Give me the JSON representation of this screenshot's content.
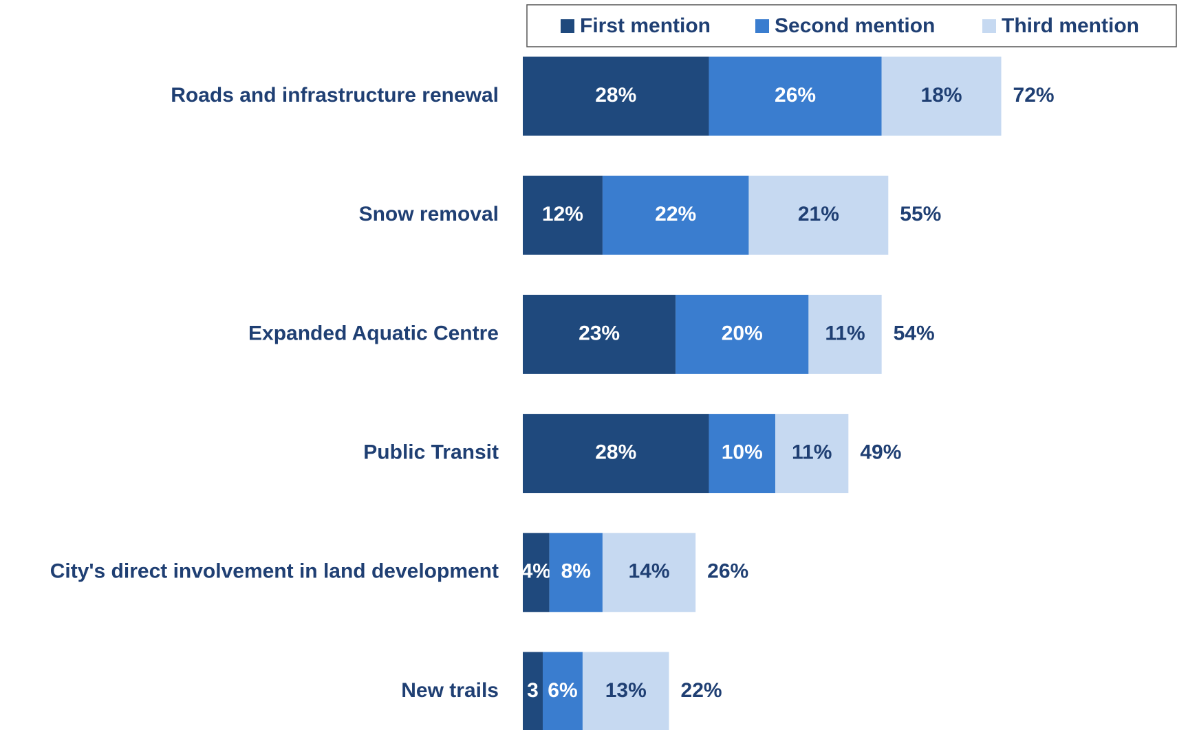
{
  "chart_data": {
    "type": "stacked-bar-horizontal",
    "categories": [
      "Roads and infrastructure renewal",
      "Snow removal",
      "Expanded Aquatic Centre",
      "Public Transit",
      "City's direct involvement in land development",
      "New trails"
    ],
    "series": [
      {
        "name": "First mention",
        "color": "#1f497d",
        "values": [
          28,
          12,
          23,
          28,
          4,
          3
        ],
        "value_labels": [
          "28%",
          "12%",
          "23%",
          "28%",
          "4%",
          "3"
        ]
      },
      {
        "name": "Second mention",
        "color": "#3a7dcf",
        "values": [
          26,
          22,
          20,
          10,
          8,
          6
        ],
        "value_labels": [
          "26%",
          "22%",
          "20%",
          "10%",
          "8%",
          "6%"
        ]
      },
      {
        "name": "Third mention",
        "color": "#c6d9f1",
        "values": [
          18,
          21,
          11,
          11,
          14,
          13
        ],
        "value_labels": [
          "18%",
          "21%",
          "11%",
          "11%",
          "14%",
          "13%"
        ]
      }
    ],
    "totals": [
      72,
      55,
      54,
      49,
      26,
      22
    ],
    "total_labels": [
      "72%",
      "55%",
      "54%",
      "49%",
      "26%",
      "22%"
    ],
    "legend": "top-right"
  }
}
